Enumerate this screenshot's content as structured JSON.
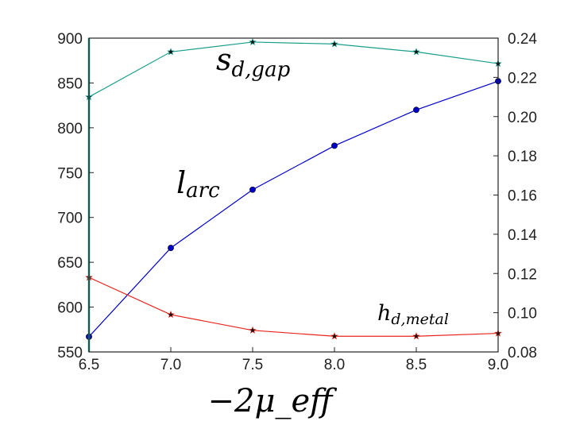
{
  "chart_data": {
    "type": "line",
    "title": "",
    "xlabel": "−2μ_eff",
    "x": [
      6.5,
      7.0,
      7.5,
      8.0,
      8.5,
      9.0
    ],
    "xlim": [
      6.5,
      9.0
    ],
    "xticks": [
      "6.5",
      "7.0",
      "7.5",
      "8.0",
      "8.5",
      "9.0"
    ],
    "left_axis": {
      "ylim": [
        550,
        900
      ],
      "ticks": [
        "550",
        "600",
        "650",
        "700",
        "750",
        "800",
        "850",
        "900"
      ]
    },
    "right_axis": {
      "ylim": [
        0.08,
        0.24
      ],
      "ticks": [
        "0.08",
        "0.10",
        "0.12",
        "0.14",
        "0.16",
        "0.18",
        "0.20",
        "0.22",
        "0.24"
      ]
    },
    "grid": false,
    "series": [
      {
        "name": "l_arc",
        "axis": "left",
        "color": "#0000cc",
        "marker": "circle",
        "values": [
          567,
          666,
          731,
          780,
          820,
          852
        ]
      },
      {
        "name": "s_d,gap",
        "axis": "right",
        "color": "#1a9e8c",
        "marker": "star",
        "values": [
          0.21,
          0.233,
          0.238,
          0.237,
          0.233,
          0.227
        ]
      },
      {
        "name": "h_d,metal",
        "axis": "right",
        "color": "#e8241c",
        "marker": "star",
        "values": [
          0.118,
          0.099,
          0.091,
          0.088,
          0.088,
          0.0895
        ]
      }
    ],
    "annotations": [
      {
        "series": "s_d,gap",
        "text_main": "s",
        "text_sub": "d,gap"
      },
      {
        "series": "l_arc",
        "text_main": "l",
        "text_sub": "arc"
      },
      {
        "series": "h_d,metal",
        "text_main": "h",
        "text_sub": "d,metal"
      }
    ]
  }
}
